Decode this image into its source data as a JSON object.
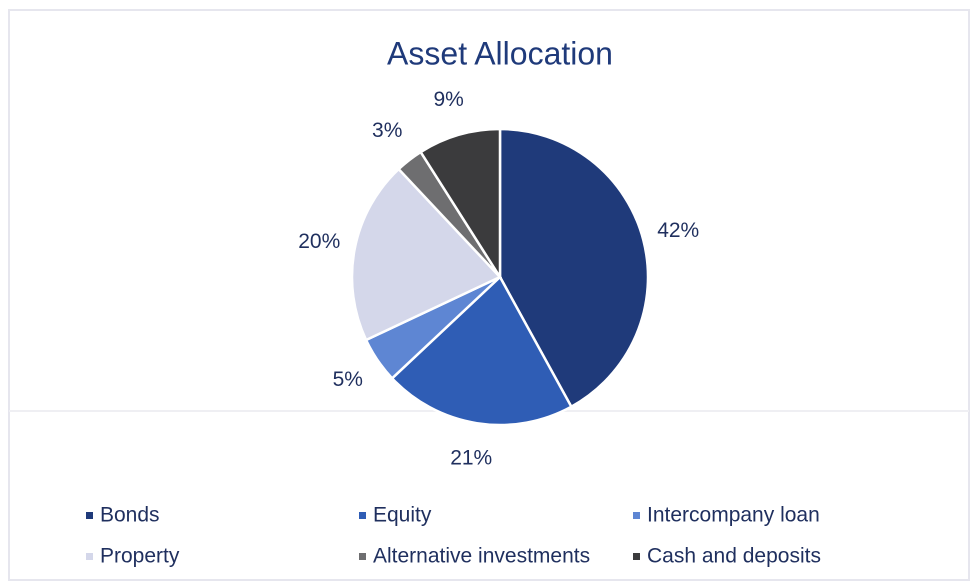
{
  "chart_data": {
    "type": "pie",
    "title": "Asset Allocation",
    "categories": [
      "Bonds",
      "Equity",
      "Intercompany loan",
      "Property",
      "Alternative investments",
      "Cash and deposits"
    ],
    "values": [
      42,
      21,
      5,
      20,
      3,
      9
    ],
    "value_labels": [
      "42%",
      "21%",
      "5%",
      "20%",
      "3%",
      "9%"
    ],
    "colors": [
      "#1f3a7a",
      "#2f5db5",
      "#5e86d3",
      "#d4d7ea",
      "#6e6e70",
      "#3b3b3d"
    ],
    "legend": "bottom"
  }
}
